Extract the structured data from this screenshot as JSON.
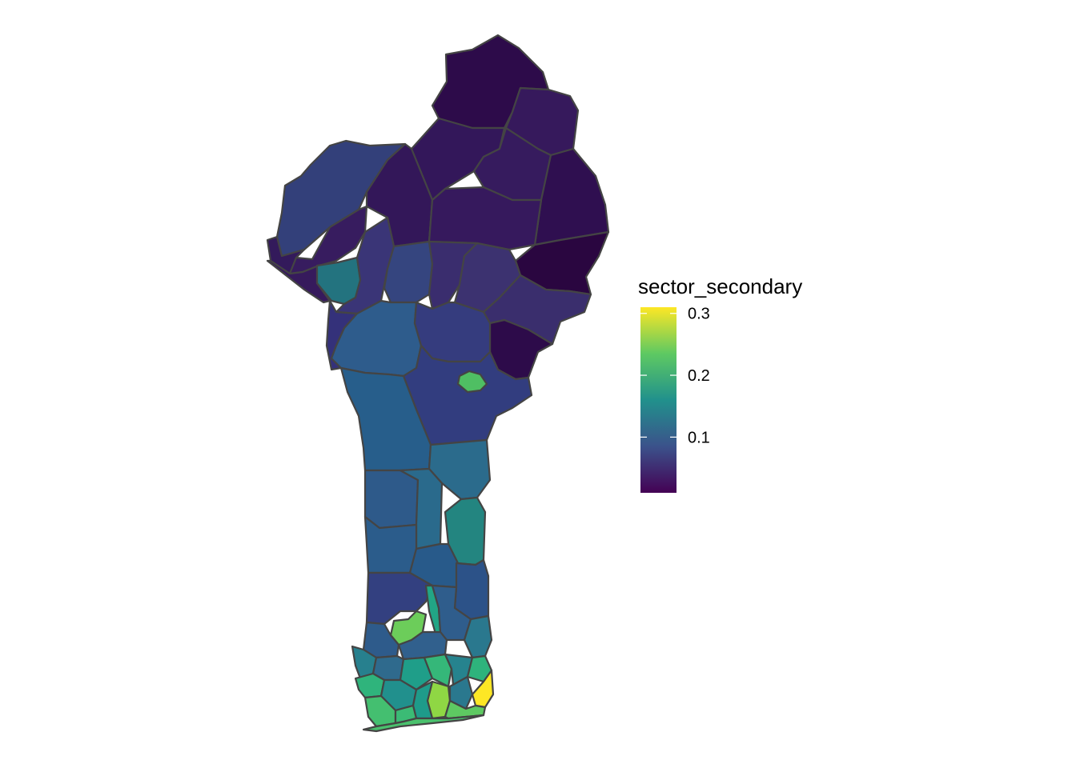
{
  "legend": {
    "title": "sector_secondary",
    "ticks": [
      {
        "value": 0.3,
        "label": "0.3"
      },
      {
        "value": 0.2,
        "label": "0.2"
      },
      {
        "value": 0.1,
        "label": "0.1"
      }
    ],
    "range": [
      0.01,
      0.31
    ],
    "palette": "viridis"
  },
  "colors": {
    "scale": [
      "#440154",
      "#3b528b",
      "#21918c",
      "#5ec962",
      "#fde725"
    ],
    "border": "#444444"
  },
  "map": {
    "country": "Benin",
    "shading": "sector_secondary by commune"
  }
}
